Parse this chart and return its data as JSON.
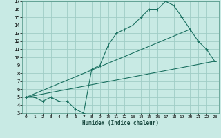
{
  "title": "",
  "xlabel": "Humidex (Indice chaleur)",
  "bg_color": "#c8eae4",
  "grid_color": "#a0cdc6",
  "line_color": "#1a7060",
  "xlim": [
    -0.5,
    23.5
  ],
  "ylim": [
    3,
    17
  ],
  "xticks": [
    0,
    1,
    2,
    3,
    4,
    5,
    6,
    7,
    8,
    9,
    10,
    11,
    12,
    13,
    14,
    15,
    16,
    17,
    18,
    19,
    20,
    21,
    22,
    23
  ],
  "yticks": [
    3,
    4,
    5,
    6,
    7,
    8,
    9,
    10,
    11,
    12,
    13,
    14,
    15,
    16,
    17
  ],
  "line1_x": [
    0,
    1,
    2,
    3,
    4,
    5,
    6,
    7,
    8,
    9,
    10,
    11,
    12,
    13,
    14,
    15,
    16,
    17,
    18,
    19,
    20,
    21,
    22,
    23
  ],
  "line1_y": [
    5,
    5,
    4.5,
    5,
    4.5,
    4.5,
    3.5,
    3,
    8.5,
    9,
    11.5,
    13,
    13.5,
    14,
    15,
    16,
    16,
    17,
    16.5,
    15,
    13.5,
    12,
    11,
    9.5
  ],
  "line2_x": [
    0,
    23
  ],
  "line2_y": [
    5,
    9.5
  ],
  "line3_x": [
    0,
    20
  ],
  "line3_y": [
    5,
    13.5
  ]
}
